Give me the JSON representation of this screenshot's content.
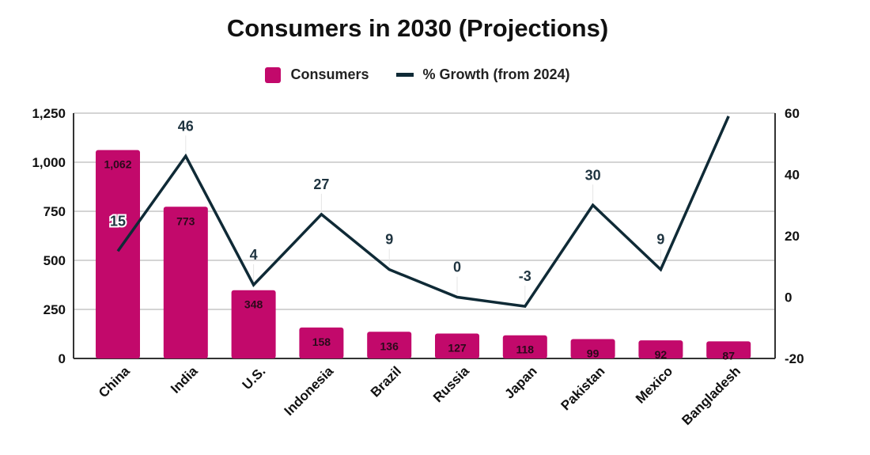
{
  "chart_data": {
    "type": "bar+line",
    "title": "Consumers in 2030 (Projections)",
    "legend_position": "top",
    "grid": true,
    "categories": [
      "China",
      "India",
      "U.S.",
      "Indonesia",
      "Brazil",
      "Russia",
      "Japan",
      "Pakistan",
      "Mexico",
      "Bangladesh"
    ],
    "series": [
      {
        "name": "Consumers",
        "type": "bar",
        "axis": "left",
        "color": "#c2096b",
        "values": [
          1062,
          773,
          348,
          158,
          136,
          127,
          118,
          99,
          92,
          87
        ],
        "labels": [
          "1,062",
          "773",
          "348",
          "158",
          "136",
          "127",
          "118",
          "99",
          "92",
          "87"
        ]
      },
      {
        "name": "% Growth (from 2024)",
        "type": "line",
        "axis": "right",
        "color": "#0f2a36",
        "values": [
          15,
          46,
          4,
          27,
          9,
          0,
          -3,
          30,
          9,
          59
        ],
        "labels": [
          "15",
          "46",
          "4",
          "27",
          "9",
          "0",
          "-3",
          "30",
          "9",
          null
        ]
      }
    ],
    "y_left": {
      "range": [
        0,
        1250
      ],
      "ticks": [
        "0",
        "250",
        "500",
        "750",
        "1,000",
        "1,250"
      ],
      "tick_values": [
        0,
        250,
        500,
        750,
        1000,
        1250
      ]
    },
    "y_right": {
      "range": [
        -20,
        60
      ],
      "ticks": [
        "-20",
        "0",
        "20",
        "40",
        "60"
      ],
      "tick_values": [
        -20,
        0,
        20,
        40,
        60
      ]
    }
  }
}
